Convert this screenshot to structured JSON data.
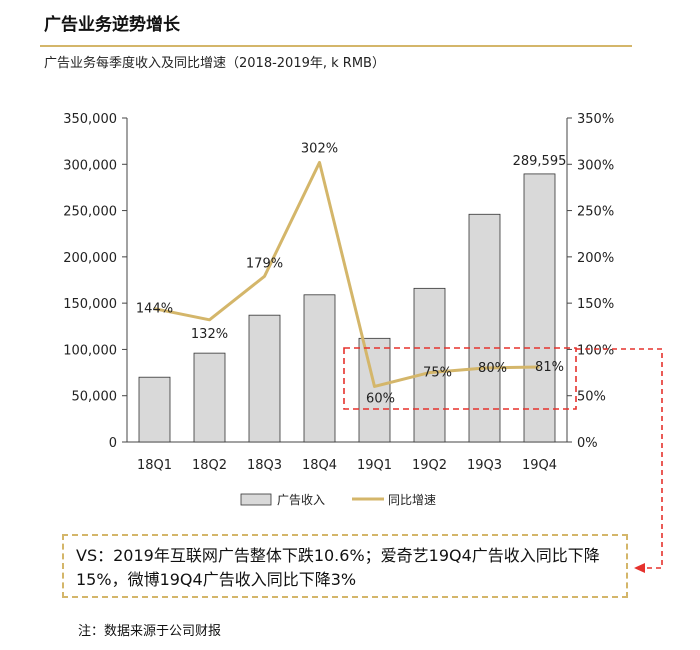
{
  "header": {
    "title": "广告业务逆势增长",
    "subtitle": "广告业务每季度收入及同比增速（2018-2019年, k RMB）"
  },
  "chart_data": {
    "type": "bar",
    "categories": [
      "18Q1",
      "18Q2",
      "18Q3",
      "18Q4",
      "19Q1",
      "19Q2",
      "19Q3",
      "19Q4"
    ],
    "series": [
      {
        "name": "广告收入",
        "type": "bar",
        "axis": "left",
        "values": [
          70000,
          96000,
          137000,
          159000,
          112000,
          166000,
          246000,
          289595
        ],
        "color": "#d9d9d9",
        "stroke": "#333333"
      },
      {
        "name": "同比增速",
        "type": "line",
        "axis": "right",
        "values": [
          144,
          132,
          179,
          302,
          60,
          75,
          80,
          81
        ],
        "color": "#d4b66a"
      }
    ],
    "data_labels": {
      "bar": [
        {
          "index": 7,
          "text": "289,595"
        }
      ],
      "line": [
        "144%",
        "132%",
        "179%",
        "302%",
        "60%",
        "75%",
        "80%",
        "81%"
      ]
    },
    "y_left": {
      "lim": [
        0,
        350000
      ],
      "ticks": [
        0,
        50000,
        100000,
        150000,
        200000,
        250000,
        300000,
        350000
      ],
      "tick_labels": [
        "0",
        "50,000",
        "100,000",
        "150,000",
        "200,000",
        "250,000",
        "300,000",
        "350,000"
      ]
    },
    "y_right": {
      "lim": [
        0,
        350
      ],
      "ticks": [
        0,
        50,
        100,
        150,
        200,
        250,
        300,
        350
      ],
      "tick_labels": [
        "0%",
        "50%",
        "100%",
        "150%",
        "200%",
        "250%",
        "300%",
        "350%"
      ]
    },
    "legend": {
      "position": "bottom"
    },
    "highlight_color": "#e5322d"
  },
  "note": {
    "text": "VS：2019年互联网广告整体下跌10.6%；爱奇艺19Q4广告收入同比下降15%，微博19Q4广告收入同比下降3%"
  },
  "footnote": "注：数据来源于公司财报"
}
